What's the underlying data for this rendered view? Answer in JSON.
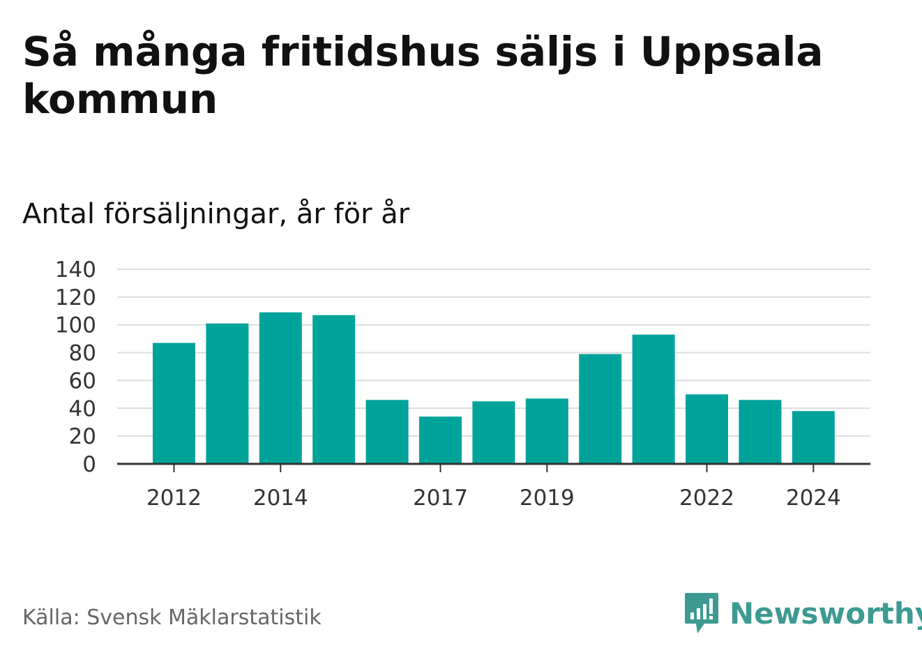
{
  "title": "Så många fritidshus säljs i Uppsala kommun",
  "subtitle": "Antal försäljningar, år för år",
  "source": "Källa: Svensk Mäklarstatistik",
  "brand": "Newsworthy",
  "colors": {
    "bar": "#00a39a",
    "grid": "#dddddd",
    "axis": "#333333",
    "brand": "#3d9a92"
  },
  "chart_data": {
    "type": "bar",
    "categories": [
      "2012",
      "2013",
      "2014",
      "2015",
      "2016",
      "2017",
      "2018",
      "2019",
      "2020",
      "2021",
      "2022",
      "2023",
      "2024"
    ],
    "values": [
      87,
      101,
      109,
      107,
      46,
      34,
      45,
      47,
      79,
      93,
      50,
      46,
      38
    ],
    "x_tick_labels": [
      "2012",
      "2014",
      "2017",
      "2019",
      "2022",
      "2024"
    ],
    "y_ticks": [
      0,
      20,
      40,
      60,
      80,
      100,
      120,
      140
    ],
    "ylim": [
      0,
      140
    ],
    "xlabel": "",
    "ylabel": "",
    "grid": true,
    "legend": "none"
  }
}
